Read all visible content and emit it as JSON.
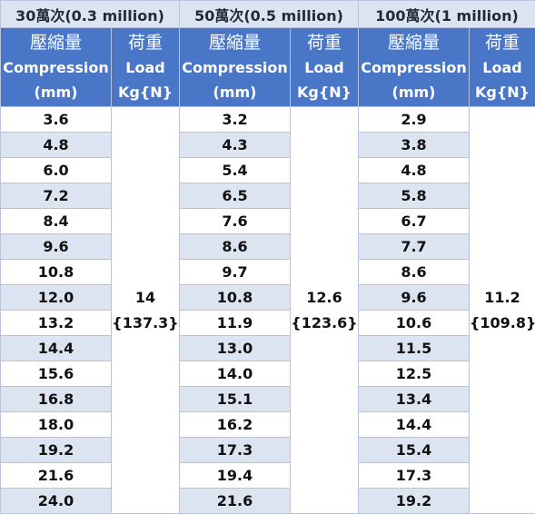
{
  "groups": [
    {
      "title": "30萬次(0.3 million)",
      "compression_header": [
        "壓縮量",
        "Compression",
        "(mm)"
      ],
      "load_header": [
        "荷重",
        "Load",
        "Kg{N}"
      ],
      "load_value": [
        "14",
        "{137.3}"
      ],
      "compression_values": [
        "3.6",
        "4.8",
        "6.0",
        "7.2",
        "8.4",
        "9.6",
        "10.8",
        "12.0",
        "13.2",
        "14.4",
        "15.6",
        "16.8",
        "18.0",
        "19.2",
        "21.6",
        "24.0"
      ]
    },
    {
      "title": "50萬次(0.5 million)",
      "compression_header": [
        "壓縮量",
        "Compression",
        "(mm)"
      ],
      "load_header": [
        "荷重",
        "Load",
        "Kg{N}"
      ],
      "load_value": [
        "12.6",
        "{123.6}"
      ],
      "compression_values": [
        "3.2",
        "4.3",
        "5.4",
        "6.5",
        "7.6",
        "8.6",
        "9.7",
        "10.8",
        "11.9",
        "13.0",
        "14.0",
        "15.1",
        "16.2",
        "17.3",
        "19.4",
        "21.6"
      ]
    },
    {
      "title": "100萬次(1 million)",
      "compression_header": [
        "壓縮量",
        "Compression",
        "(mm)"
      ],
      "load_header": [
        "荷重",
        "Load",
        "Kg{N}"
      ],
      "load_value": [
        "11.2",
        "{109.8}"
      ],
      "compression_values": [
        "2.9",
        "3.8",
        "4.8",
        "5.8",
        "6.7",
        "7.7",
        "8.6",
        "9.6",
        "10.6",
        "11.5",
        "12.5",
        "13.4",
        "14.4",
        "15.4",
        "17.3",
        "19.2"
      ]
    }
  ]
}
